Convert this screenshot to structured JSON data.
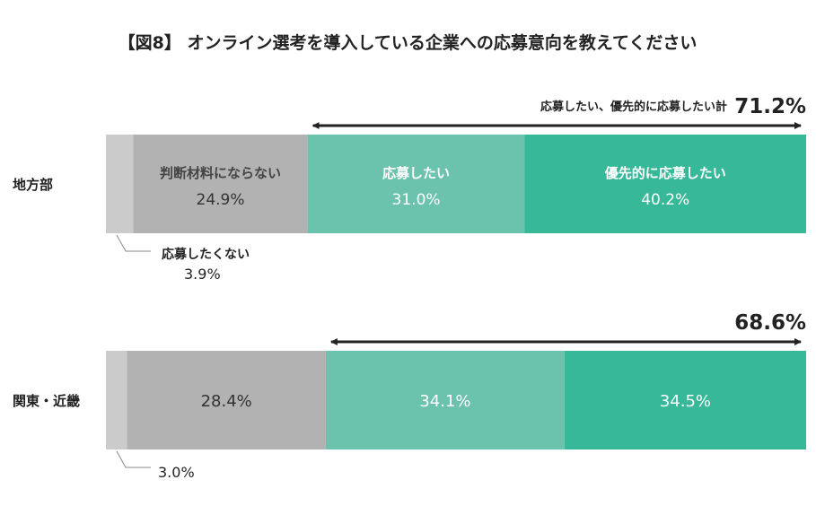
{
  "chart_data": {
    "type": "bar",
    "orientation": "horizontal-stacked-100",
    "title": "【図8】 オンライン選考を導入している企業への応募意向を教えてください",
    "categories": [
      "地方部",
      "関東・近畿"
    ],
    "series": [
      {
        "name": "応募したくない",
        "values": [
          3.9,
          3.0
        ],
        "color": "#cbcbcb"
      },
      {
        "name": "判断材料にならない",
        "values": [
          24.9,
          28.4
        ],
        "color": "#b2b2b2"
      },
      {
        "name": "応募したい",
        "values": [
          31.0,
          34.1
        ],
        "color": "#6bc2ad"
      },
      {
        "name": "優先的に応募したい",
        "values": [
          40.2,
          34.5
        ],
        "color": "#37b898"
      }
    ],
    "totals": [
      {
        "label": "応募したい、優先的に応募したい計",
        "value": "71.2%"
      },
      {
        "label": "",
        "value": "68.6%"
      }
    ],
    "value_labels": [
      [
        "3.9%",
        "24.9%",
        "31.0%",
        "40.2%"
      ],
      [
        "3.0%",
        "28.4%",
        "34.1%",
        "34.5%"
      ]
    ],
    "xlim": [
      0,
      100
    ]
  }
}
